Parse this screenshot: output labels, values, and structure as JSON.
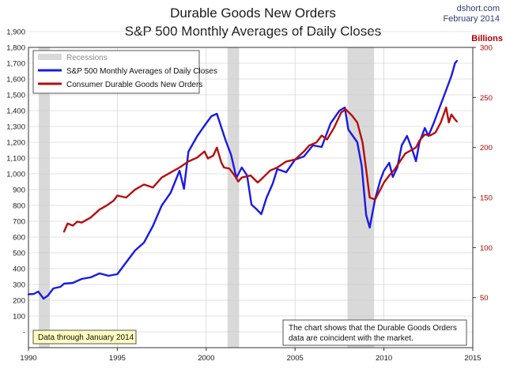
{
  "header": {
    "title_line1": "Durable Goods New Orders",
    "title_line2": "S&P 500 Monthly Averages of Daily Closes",
    "source": "dshort.com",
    "date": "February 2014"
  },
  "notes": {
    "data_through": "Data through January 2014",
    "commentary_line1": "The chart shows that the Durable Goods Orders",
    "commentary_line2": "data are coincident with the market."
  },
  "colors": {
    "sp500": "#1a1ae6",
    "durable_goods": "#b50e0e",
    "recession": "#d9d9d9",
    "plot_background": "#ffffff",
    "grid": "#c8c8c8",
    "data_through_box": "#ffffc0"
  },
  "chart_data": {
    "type": "line",
    "x_ticks": [
      "1990",
      "1995",
      "2000",
      "2005",
      "2010",
      "2015"
    ],
    "xlim": [
      1990,
      2015
    ],
    "y_left": {
      "ylim": [
        0,
        1900
      ],
      "ticks": [
        "-",
        "100",
        "200",
        "300",
        "400",
        "500",
        "600",
        "700",
        "800",
        "900",
        "1,000",
        "1,100",
        "1,200",
        "1,300",
        "1,400",
        "1,500",
        "1,600",
        "1,700",
        "1,800",
        "1,900"
      ]
    },
    "y_right": {
      "label": "Billions",
      "ylim": [
        0,
        300
      ],
      "ticks": [
        "50",
        "100",
        "150",
        "200",
        "250",
        "300"
      ]
    },
    "legend": {
      "position": "top-left",
      "recession_label": "Recessions"
    },
    "grid": true,
    "recessions": [
      [
        1990.58,
        1991.2
      ],
      [
        2001.2,
        2001.85
      ],
      [
        2007.95,
        2009.45
      ]
    ],
    "series": [
      {
        "name": "S&P 500 Monthly Averages of Daily Closes",
        "axis": "left",
        "points": [
          [
            1990.0,
            338
          ],
          [
            1990.3,
            340
          ],
          [
            1990.55,
            355
          ],
          [
            1990.85,
            310
          ],
          [
            1991.1,
            330
          ],
          [
            1991.4,
            375
          ],
          [
            1991.8,
            385
          ],
          [
            1992.0,
            405
          ],
          [
            1992.5,
            410
          ],
          [
            1993.0,
            435
          ],
          [
            1993.5,
            445
          ],
          [
            1994.0,
            470
          ],
          [
            1994.5,
            455
          ],
          [
            1995.0,
            465
          ],
          [
            1995.5,
            540
          ],
          [
            1996.0,
            615
          ],
          [
            1996.5,
            665
          ],
          [
            1997.0,
            770
          ],
          [
            1997.5,
            900
          ],
          [
            1998.0,
            980
          ],
          [
            1998.5,
            1120
          ],
          [
            1998.75,
            1005
          ],
          [
            1999.0,
            1240
          ],
          [
            1999.5,
            1340
          ],
          [
            2000.0,
            1420
          ],
          [
            2000.3,
            1465
          ],
          [
            2000.6,
            1480
          ],
          [
            2000.85,
            1395
          ],
          [
            2001.1,
            1310
          ],
          [
            2001.4,
            1220
          ],
          [
            2001.7,
            1075
          ],
          [
            2002.0,
            1140
          ],
          [
            2002.3,
            1090
          ],
          [
            2002.55,
            905
          ],
          [
            2002.8,
            880
          ],
          [
            2003.1,
            845
          ],
          [
            2003.4,
            950
          ],
          [
            2003.75,
            1040
          ],
          [
            2004.0,
            1130
          ],
          [
            2004.5,
            1110
          ],
          [
            2005.0,
            1190
          ],
          [
            2005.5,
            1210
          ],
          [
            2006.0,
            1280
          ],
          [
            2006.5,
            1270
          ],
          [
            2007.0,
            1420
          ],
          [
            2007.5,
            1500
          ],
          [
            2007.8,
            1520
          ],
          [
            2008.0,
            1380
          ],
          [
            2008.5,
            1300
          ],
          [
            2008.75,
            1150
          ],
          [
            2009.0,
            840
          ],
          [
            2009.2,
            760
          ],
          [
            2009.5,
            940
          ],
          [
            2009.8,
            1060
          ],
          [
            2010.0,
            1120
          ],
          [
            2010.3,
            1170
          ],
          [
            2010.5,
            1080
          ],
          [
            2010.75,
            1140
          ],
          [
            2011.0,
            1280
          ],
          [
            2011.3,
            1340
          ],
          [
            2011.6,
            1250
          ],
          [
            2011.8,
            1180
          ],
          [
            2012.0,
            1300
          ],
          [
            2012.3,
            1390
          ],
          [
            2012.5,
            1340
          ],
          [
            2012.8,
            1420
          ],
          [
            2013.0,
            1480
          ],
          [
            2013.3,
            1570
          ],
          [
            2013.5,
            1630
          ],
          [
            2013.8,
            1720
          ],
          [
            2014.0,
            1800
          ],
          [
            2014.1,
            1815
          ]
        ]
      },
      {
        "name": "Consumer Durable Goods New Orders",
        "axis": "right",
        "points": [
          [
            1992.0,
            116
          ],
          [
            1992.2,
            124
          ],
          [
            1992.5,
            122
          ],
          [
            1992.75,
            126
          ],
          [
            1993.0,
            125
          ],
          [
            1993.5,
            130
          ],
          [
            1994.0,
            138
          ],
          [
            1994.4,
            142
          ],
          [
            1994.8,
            147
          ],
          [
            1995.0,
            152
          ],
          [
            1995.5,
            150
          ],
          [
            1996.0,
            158
          ],
          [
            1996.5,
            163
          ],
          [
            1997.0,
            160
          ],
          [
            1997.5,
            170
          ],
          [
            1998.0,
            175
          ],
          [
            1998.5,
            180
          ],
          [
            1999.0,
            186
          ],
          [
            1999.5,
            190
          ],
          [
            1999.9,
            196
          ],
          [
            2000.1,
            189
          ],
          [
            2000.4,
            192
          ],
          [
            2000.6,
            200
          ],
          [
            2000.85,
            185
          ],
          [
            2001.0,
            180
          ],
          [
            2001.3,
            179
          ],
          [
            2001.6,
            172
          ],
          [
            2001.8,
            166
          ],
          [
            2002.0,
            170
          ],
          [
            2002.5,
            172
          ],
          [
            2002.9,
            165
          ],
          [
            2003.2,
            170
          ],
          [
            2003.6,
            177
          ],
          [
            2004.0,
            180
          ],
          [
            2004.5,
            186
          ],
          [
            2005.0,
            188
          ],
          [
            2005.5,
            196
          ],
          [
            2005.8,
            202
          ],
          [
            2006.2,
            205
          ],
          [
            2006.5,
            212
          ],
          [
            2006.8,
            208
          ],
          [
            2007.2,
            220
          ],
          [
            2007.6,
            235
          ],
          [
            2007.85,
            238
          ],
          [
            2008.2,
            232
          ],
          [
            2008.5,
            225
          ],
          [
            2008.8,
            205
          ],
          [
            2009.0,
            178
          ],
          [
            2009.2,
            150
          ],
          [
            2009.5,
            148
          ],
          [
            2009.8,
            158
          ],
          [
            2010.0,
            165
          ],
          [
            2010.3,
            172
          ],
          [
            2010.6,
            178
          ],
          [
            2010.9,
            186
          ],
          [
            2011.2,
            194
          ],
          [
            2011.5,
            197
          ],
          [
            2011.8,
            200
          ],
          [
            2012.0,
            207
          ],
          [
            2012.3,
            213
          ],
          [
            2012.6,
            212
          ],
          [
            2012.9,
            215
          ],
          [
            2013.2,
            225
          ],
          [
            2013.5,
            240
          ],
          [
            2013.65,
            225
          ],
          [
            2013.8,
            233
          ],
          [
            2014.0,
            228
          ],
          [
            2014.1,
            226
          ]
        ]
      }
    ]
  }
}
